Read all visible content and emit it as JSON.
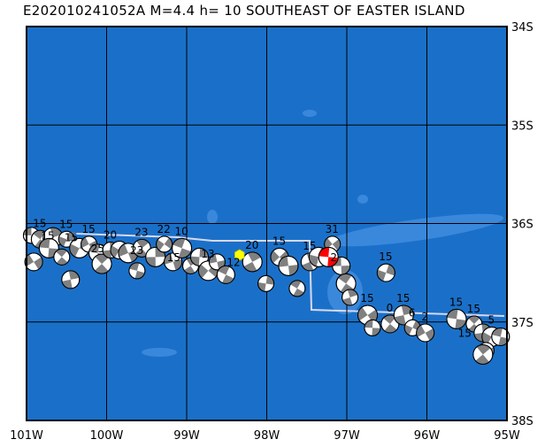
{
  "title": "E202010241052A M=4.4 h= 10 SOUTHEAST OF EASTER ISLAND",
  "map": {
    "lon_range": [
      -101,
      -95
    ],
    "lat_range": [
      -38,
      -34
    ],
    "lon_ticks": [
      {
        "v": -101,
        "label": "101W"
      },
      {
        "v": -100,
        "label": "100W"
      },
      {
        "v": -99,
        "label": "99W"
      },
      {
        "v": -98,
        "label": "98W"
      },
      {
        "v": -97,
        "label": "97W"
      },
      {
        "v": -96,
        "label": "96W"
      },
      {
        "v": -95,
        "label": "95W"
      }
    ],
    "lat_ticks": [
      {
        "v": -34,
        "label": "34S"
      },
      {
        "v": -35,
        "label": "35S"
      },
      {
        "v": -36,
        "label": "36S"
      },
      {
        "v": -37,
        "label": "37S"
      },
      {
        "v": -38,
        "label": "38S"
      }
    ],
    "colors": {
      "ocean": "#1a70c8",
      "shallow": "#3a88dc",
      "grid": "#000000",
      "ball_gray": "#808080",
      "highlight": "#ff0000",
      "marker": "#ffff00",
      "boundary": "#d8d8f0"
    },
    "epicenter": {
      "lon": -98.34,
      "lat": -36.32
    },
    "events": [
      {
        "lon": -100.94,
        "lat": -36.12,
        "depth": "15"
      },
      {
        "lon": -100.83,
        "lat": -36.16,
        "depth": "15"
      },
      {
        "lon": -100.67,
        "lat": -36.14,
        "depth": "15"
      },
      {
        "lon": -100.5,
        "lat": -36.16,
        "depth": "15"
      },
      {
        "lon": -100.91,
        "lat": -36.39,
        "depth": ""
      },
      {
        "lon": -100.72,
        "lat": -36.25,
        "depth": ""
      },
      {
        "lon": -100.56,
        "lat": -36.34,
        "depth": ""
      },
      {
        "lon": -100.45,
        "lat": -36.57,
        "depth": ""
      },
      {
        "lon": -100.34,
        "lat": -36.25,
        "depth": "25"
      },
      {
        "lon": -100.22,
        "lat": -36.21,
        "depth": "15"
      },
      {
        "lon": -100.11,
        "lat": -36.3,
        "depth": ""
      },
      {
        "lon": -100.06,
        "lat": -36.41,
        "depth": ""
      },
      {
        "lon": -99.95,
        "lat": -36.27,
        "depth": "20"
      },
      {
        "lon": -99.84,
        "lat": -36.27,
        "depth": "23"
      },
      {
        "lon": -99.73,
        "lat": -36.3,
        "depth": ""
      },
      {
        "lon": -99.62,
        "lat": -36.48,
        "depth": ""
      },
      {
        "lon": -99.56,
        "lat": -36.25,
        "depth": "23"
      },
      {
        "lon": -99.39,
        "lat": -36.34,
        "depth": "15"
      },
      {
        "lon": -99.28,
        "lat": -36.21,
        "depth": "22"
      },
      {
        "lon": -99.17,
        "lat": -36.39,
        "depth": ""
      },
      {
        "lon": -99.06,
        "lat": -36.25,
        "depth": "10"
      },
      {
        "lon": -98.95,
        "lat": -36.43,
        "depth": ""
      },
      {
        "lon": -98.84,
        "lat": -36.34,
        "depth": ""
      },
      {
        "lon": -98.73,
        "lat": -36.48,
        "depth": "13"
      },
      {
        "lon": -98.62,
        "lat": -36.39,
        "depth": "12"
      },
      {
        "lon": -98.51,
        "lat": -36.52,
        "depth": ""
      },
      {
        "lon": -98.18,
        "lat": -36.39,
        "depth": "20"
      },
      {
        "lon": -98.01,
        "lat": -36.61,
        "depth": ""
      },
      {
        "lon": -97.84,
        "lat": -36.34,
        "depth": "15"
      },
      {
        "lon": -97.73,
        "lat": -36.43,
        "depth": ""
      },
      {
        "lon": -97.62,
        "lat": -36.66,
        "depth": ""
      },
      {
        "lon": -97.46,
        "lat": -36.39,
        "depth": "15"
      },
      {
        "lon": -97.35,
        "lat": -36.34,
        "depth": "2"
      },
      {
        "lon": -97.18,
        "lat": -36.21,
        "depth": "31"
      },
      {
        "lon": -97.07,
        "lat": -36.43,
        "depth": ""
      },
      {
        "lon": -97.01,
        "lat": -36.61,
        "depth": ""
      },
      {
        "lon": -96.96,
        "lat": -36.75,
        "depth": ""
      },
      {
        "lon": -96.51,
        "lat": -36.5,
        "depth": "15"
      },
      {
        "lon": -96.74,
        "lat": -36.93,
        "depth": "15"
      },
      {
        "lon": -96.68,
        "lat": -37.06,
        "depth": ""
      },
      {
        "lon": -96.46,
        "lat": -37.02,
        "depth": "0"
      },
      {
        "lon": -96.29,
        "lat": -36.93,
        "depth": "15"
      },
      {
        "lon": -96.18,
        "lat": -37.06,
        "depth": "6"
      },
      {
        "lon": -96.02,
        "lat": -37.11,
        "depth": "2"
      },
      {
        "lon": -95.63,
        "lat": -36.97,
        "depth": "15"
      },
      {
        "lon": -95.41,
        "lat": -37.02,
        "depth": "15"
      },
      {
        "lon": -95.3,
        "lat": -37.11,
        "depth": "15"
      },
      {
        "lon": -95.19,
        "lat": -37.15,
        "depth": "5"
      },
      {
        "lon": -95.26,
        "lat": -37.29,
        "depth": ""
      },
      {
        "lon": -95.08,
        "lat": -37.15,
        "depth": ""
      },
      {
        "lon": -95.3,
        "lat": -37.33,
        "depth": ""
      }
    ],
    "highlight_event": {
      "lon": -97.23,
      "lat": -36.34
    }
  }
}
